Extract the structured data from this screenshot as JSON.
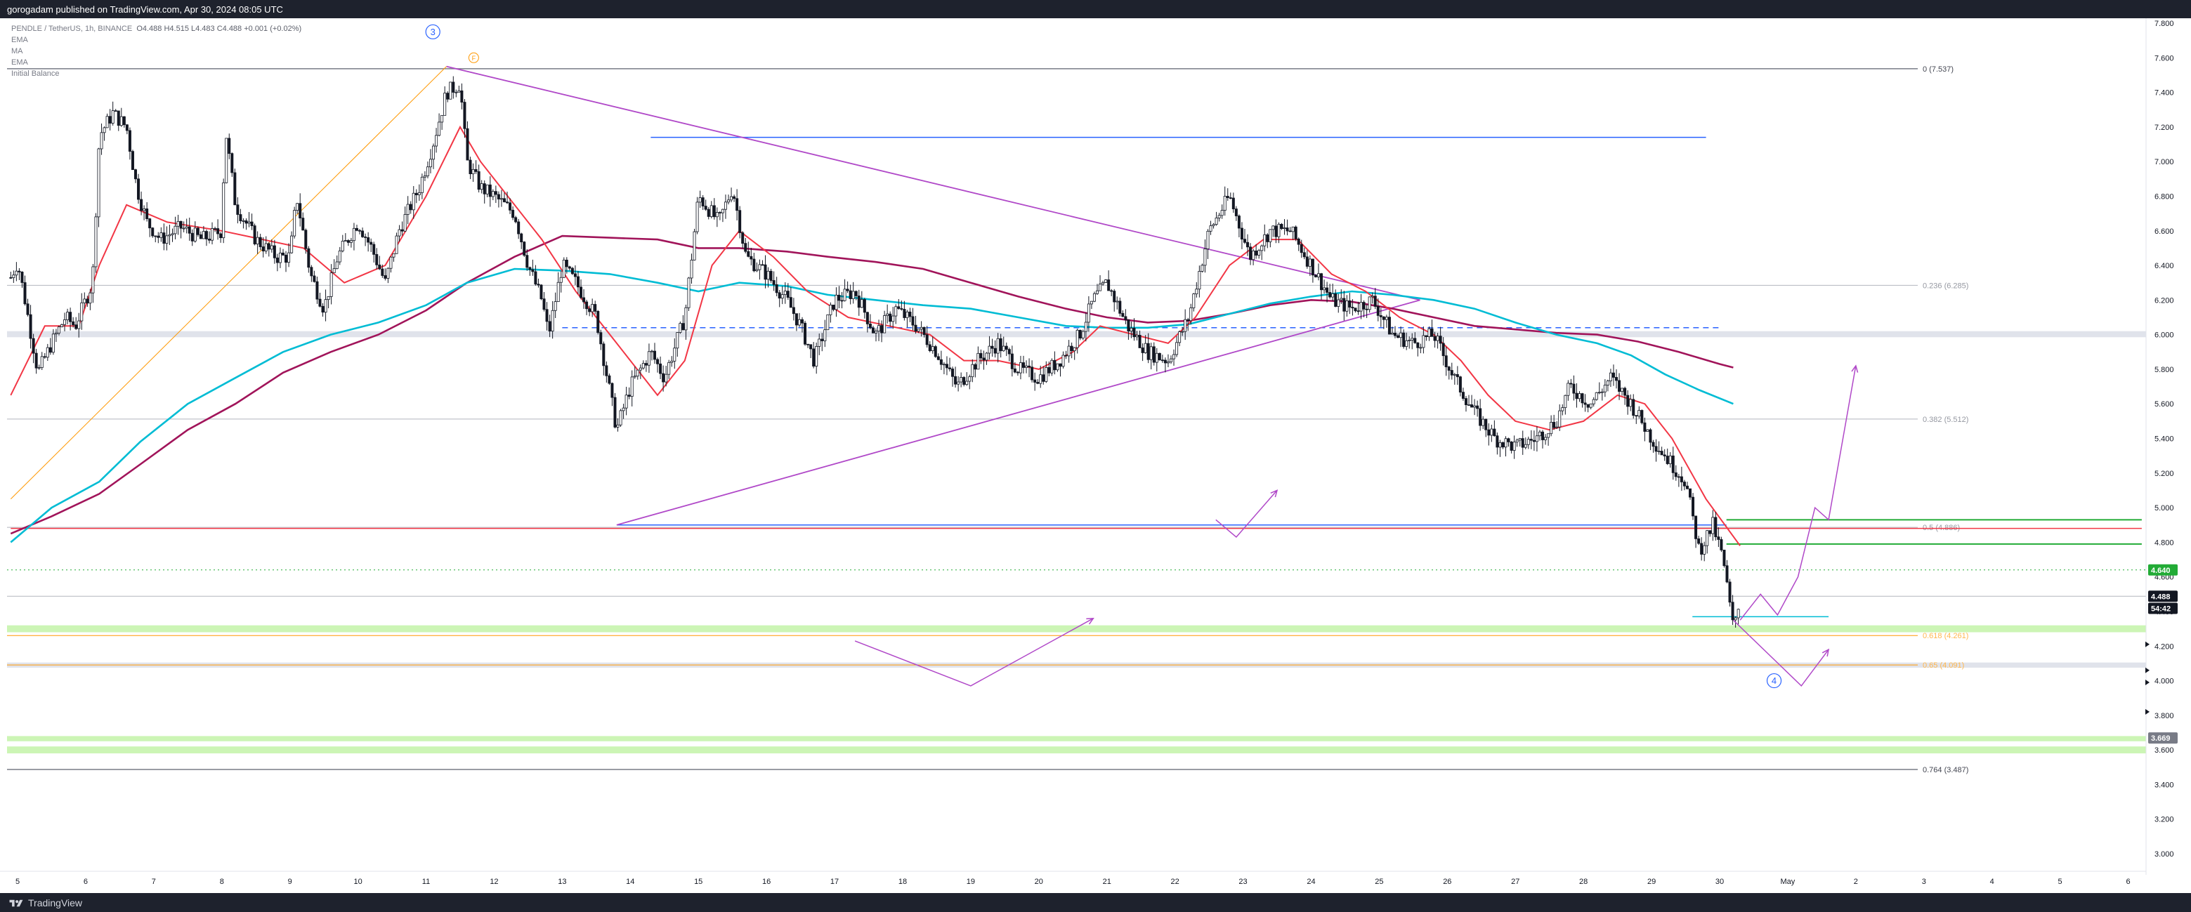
{
  "header": {
    "publisher_line": "gorogadam published on TradingView.com, Apr 30, 2024 08:05 UTC"
  },
  "legend": {
    "symbol": "PENDLE / TetherUS, 1h, BINANCE",
    "ohlc": "O4.488  H4.515  L4.483  C4.488  +0.001 (+0.02%)",
    "indicators": [
      "EMA",
      "MA",
      "EMA",
      "Initial Balance"
    ]
  },
  "footer": {
    "brand": "TradingView"
  },
  "colors": {
    "candle": "#131722",
    "ema_fast": "#f23645",
    "ma": "#00bcd4",
    "ema_slow": "#a1145a",
    "trend_line": "#b048c8",
    "fib_line": "#9598a1",
    "blue_level": "#2962ff",
    "green_level": "#22ab36",
    "zone": "#ccf5b5"
  },
  "chart_data": {
    "type": "candlestick",
    "symbol": "PENDLE / TetherUS",
    "interval": "1h",
    "exchange": "BINANCE",
    "x_ticks": [
      "5",
      "6",
      "7",
      "8",
      "9",
      "10",
      "11",
      "12",
      "13",
      "14",
      "15",
      "16",
      "17",
      "18",
      "19",
      "20",
      "21",
      "22",
      "23",
      "24",
      "25",
      "26",
      "27",
      "28",
      "29",
      "30",
      "May",
      "2",
      "3",
      "4",
      "5",
      "6"
    ],
    "x_tick_days": [
      5,
      6,
      7,
      8,
      9,
      10,
      11,
      12,
      13,
      14,
      15,
      16,
      17,
      18,
      19,
      20,
      21,
      22,
      23,
      24,
      25,
      26,
      27,
      28,
      29,
      30,
      31,
      32,
      33,
      34,
      35,
      36
    ],
    "y_ticks": [
      "7.800",
      "7.600",
      "7.400",
      "7.200",
      "7.000",
      "6.800",
      "6.600",
      "6.400",
      "6.200",
      "6.000",
      "5.800",
      "5.600",
      "5.400",
      "5.200",
      "5.000",
      "4.800",
      "4.600",
      "4.400",
      "4.200",
      "4.000",
      "3.800",
      "3.600",
      "3.400",
      "3.200",
      "3.000"
    ],
    "ylim": [
      2.96,
      7.86
    ],
    "price_points": [
      [
        4.9,
        6.33
      ],
      [
        5.0,
        6.42
      ],
      [
        5.1,
        6.22
      ],
      [
        5.2,
        6.0
      ],
      [
        5.3,
        5.78
      ],
      [
        5.5,
        5.95
      ],
      [
        5.7,
        6.1
      ],
      [
        5.85,
        6.05
      ],
      [
        6.1,
        6.3
      ],
      [
        6.2,
        7.15
      ],
      [
        6.4,
        7.28
      ],
      [
        6.6,
        7.2
      ],
      [
        6.75,
        6.85
      ],
      [
        6.9,
        6.65
      ],
      [
        7.1,
        6.55
      ],
      [
        7.4,
        6.62
      ],
      [
        7.7,
        6.55
      ],
      [
        8.0,
        6.6
      ],
      [
        8.05,
        7.2
      ],
      [
        8.2,
        6.75
      ],
      [
        8.5,
        6.55
      ],
      [
        8.8,
        6.45
      ],
      [
        9.0,
        6.45
      ],
      [
        9.1,
        6.8
      ],
      [
        9.3,
        6.35
      ],
      [
        9.5,
        6.15
      ],
      [
        9.7,
        6.45
      ],
      [
        10.0,
        6.65
      ],
      [
        10.2,
        6.5
      ],
      [
        10.4,
        6.3
      ],
      [
        10.6,
        6.6
      ],
      [
        10.9,
        6.85
      ],
      [
        11.1,
        7.1
      ],
      [
        11.3,
        7.4
      ],
      [
        11.5,
        7.45
      ],
      [
        11.6,
        7.0
      ],
      [
        11.8,
        6.85
      ],
      [
        12.0,
        6.8
      ],
      [
        12.3,
        6.7
      ],
      [
        12.5,
        6.4
      ],
      [
        12.7,
        6.2
      ],
      [
        12.8,
        6.0
      ],
      [
        13.0,
        6.4
      ],
      [
        13.2,
        6.3
      ],
      [
        13.5,
        6.1
      ],
      [
        13.8,
        5.45
      ],
      [
        14.0,
        5.7
      ],
      [
        14.3,
        5.9
      ],
      [
        14.5,
        5.75
      ],
      [
        14.8,
        6.1
      ],
      [
        15.0,
        6.8
      ],
      [
        15.3,
        6.65
      ],
      [
        15.5,
        6.85
      ],
      [
        15.7,
        6.45
      ],
      [
        16.0,
        6.35
      ],
      [
        16.3,
        6.2
      ],
      [
        16.5,
        6.05
      ],
      [
        16.7,
        5.85
      ],
      [
        17.0,
        6.2
      ],
      [
        17.3,
        6.25
      ],
      [
        17.6,
        6.0
      ],
      [
        17.9,
        6.15
      ],
      [
        18.2,
        6.05
      ],
      [
        18.5,
        5.9
      ],
      [
        18.8,
        5.7
      ],
      [
        19.1,
        5.85
      ],
      [
        19.4,
        5.95
      ],
      [
        19.7,
        5.8
      ],
      [
        20.0,
        5.75
      ],
      [
        20.3,
        5.85
      ],
      [
        20.6,
        6.0
      ],
      [
        20.8,
        6.2
      ],
      [
        21.0,
        6.3
      ],
      [
        21.3,
        6.05
      ],
      [
        21.6,
        5.9
      ],
      [
        21.9,
        5.85
      ],
      [
        22.2,
        6.1
      ],
      [
        22.5,
        6.6
      ],
      [
        22.8,
        6.8
      ],
      [
        23.1,
        6.45
      ],
      [
        23.4,
        6.6
      ],
      [
        23.7,
        6.6
      ],
      [
        24.0,
        6.4
      ],
      [
        24.3,
        6.2
      ],
      [
        24.6,
        6.15
      ],
      [
        24.9,
        6.2
      ],
      [
        25.2,
        6.0
      ],
      [
        25.5,
        5.95
      ],
      [
        25.8,
        6.0
      ],
      [
        26.1,
        5.75
      ],
      [
        26.4,
        5.55
      ],
      [
        26.7,
        5.4
      ],
      [
        27.0,
        5.35
      ],
      [
        27.3,
        5.4
      ],
      [
        27.6,
        5.5
      ],
      [
        27.8,
        5.7
      ],
      [
        28.1,
        5.6
      ],
      [
        28.4,
        5.75
      ],
      [
        28.7,
        5.6
      ],
      [
        29.0,
        5.4
      ],
      [
        29.3,
        5.25
      ],
      [
        29.5,
        5.15
      ],
      [
        29.7,
        4.75
      ],
      [
        29.9,
        4.9
      ],
      [
        30.05,
        4.7
      ],
      [
        30.2,
        4.3
      ],
      [
        30.3,
        4.488
      ]
    ],
    "ema_fast": [
      [
        4.9,
        5.65
      ],
      [
        5.4,
        6.05
      ],
      [
        5.9,
        6.05
      ],
      [
        6.2,
        6.4
      ],
      [
        6.6,
        6.75
      ],
      [
        7.2,
        6.65
      ],
      [
        8.0,
        6.6
      ],
      [
        8.6,
        6.55
      ],
      [
        9.2,
        6.5
      ],
      [
        9.8,
        6.3
      ],
      [
        10.4,
        6.4
      ],
      [
        11.0,
        6.8
      ],
      [
        11.5,
        7.2
      ],
      [
        11.8,
        7.0
      ],
      [
        12.2,
        6.8
      ],
      [
        12.7,
        6.55
      ],
      [
        13.2,
        6.25
      ],
      [
        13.8,
        5.95
      ],
      [
        14.4,
        5.65
      ],
      [
        14.8,
        5.85
      ],
      [
        15.2,
        6.4
      ],
      [
        15.6,
        6.6
      ],
      [
        16.1,
        6.45
      ],
      [
        16.6,
        6.25
      ],
      [
        17.2,
        6.1
      ],
      [
        17.8,
        6.05
      ],
      [
        18.4,
        6.0
      ],
      [
        18.9,
        5.85
      ],
      [
        19.4,
        5.85
      ],
      [
        20.0,
        5.8
      ],
      [
        20.5,
        5.9
      ],
      [
        20.9,
        6.05
      ],
      [
        21.4,
        6.0
      ],
      [
        21.9,
        5.95
      ],
      [
        22.3,
        6.1
      ],
      [
        22.8,
        6.4
      ],
      [
        23.3,
        6.55
      ],
      [
        23.8,
        6.55
      ],
      [
        24.3,
        6.35
      ],
      [
        24.8,
        6.25
      ],
      [
        25.3,
        6.1
      ],
      [
        25.8,
        6.0
      ],
      [
        26.2,
        5.85
      ],
      [
        26.6,
        5.65
      ],
      [
        27.0,
        5.5
      ],
      [
        27.5,
        5.45
      ],
      [
        28.0,
        5.5
      ],
      [
        28.5,
        5.65
      ],
      [
        28.9,
        5.6
      ],
      [
        29.3,
        5.4
      ],
      [
        29.8,
        5.05
      ],
      [
        30.3,
        4.78
      ]
    ],
    "ma": [
      [
        4.9,
        4.8
      ],
      [
        5.5,
        5.0
      ],
      [
        6.2,
        5.15
      ],
      [
        6.8,
        5.38
      ],
      [
        7.5,
        5.6
      ],
      [
        8.2,
        5.75
      ],
      [
        8.9,
        5.9
      ],
      [
        9.6,
        6.0
      ],
      [
        10.3,
        6.07
      ],
      [
        11.0,
        6.17
      ],
      [
        11.6,
        6.3
      ],
      [
        12.3,
        6.38
      ],
      [
        13.0,
        6.37
      ],
      [
        13.7,
        6.35
      ],
      [
        14.4,
        6.3
      ],
      [
        15.0,
        6.25
      ],
      [
        15.6,
        6.3
      ],
      [
        16.3,
        6.28
      ],
      [
        16.9,
        6.23
      ],
      [
        17.6,
        6.2
      ],
      [
        18.3,
        6.17
      ],
      [
        19.0,
        6.15
      ],
      [
        19.7,
        6.1
      ],
      [
        20.4,
        6.05
      ],
      [
        21.0,
        6.04
      ],
      [
        21.6,
        6.04
      ],
      [
        22.2,
        6.06
      ],
      [
        22.8,
        6.12
      ],
      [
        23.4,
        6.18
      ],
      [
        24.0,
        6.22
      ],
      [
        24.6,
        6.25
      ],
      [
        25.2,
        6.23
      ],
      [
        25.8,
        6.2
      ],
      [
        26.4,
        6.15
      ],
      [
        27.0,
        6.07
      ],
      [
        27.6,
        6.0
      ],
      [
        28.2,
        5.95
      ],
      [
        28.7,
        5.88
      ],
      [
        29.2,
        5.77
      ],
      [
        29.7,
        5.68
      ],
      [
        30.2,
        5.6
      ]
    ],
    "ema_slow": [
      [
        4.9,
        4.85
      ],
      [
        5.5,
        4.95
      ],
      [
        6.2,
        5.08
      ],
      [
        6.8,
        5.25
      ],
      [
        7.5,
        5.45
      ],
      [
        8.2,
        5.6
      ],
      [
        8.9,
        5.78
      ],
      [
        9.6,
        5.9
      ],
      [
        10.3,
        6.0
      ],
      [
        11.0,
        6.14
      ],
      [
        11.6,
        6.3
      ],
      [
        12.3,
        6.45
      ],
      [
        13.0,
        6.57
      ],
      [
        13.7,
        6.56
      ],
      [
        14.4,
        6.55
      ],
      [
        15.0,
        6.5
      ],
      [
        15.6,
        6.5
      ],
      [
        16.3,
        6.48
      ],
      [
        16.9,
        6.45
      ],
      [
        17.6,
        6.42
      ],
      [
        18.3,
        6.38
      ],
      [
        19.0,
        6.3
      ],
      [
        19.7,
        6.22
      ],
      [
        20.4,
        6.15
      ],
      [
        21.0,
        6.1
      ],
      [
        21.6,
        6.07
      ],
      [
        22.2,
        6.08
      ],
      [
        22.8,
        6.12
      ],
      [
        23.4,
        6.17
      ],
      [
        24.0,
        6.2
      ],
      [
        24.6,
        6.19
      ],
      [
        25.2,
        6.15
      ],
      [
        25.8,
        6.1
      ],
      [
        26.4,
        6.05
      ],
      [
        27.0,
        6.03
      ],
      [
        27.6,
        6.01
      ],
      [
        28.2,
        6.0
      ],
      [
        28.8,
        5.96
      ],
      [
        29.4,
        5.9
      ],
      [
        30.0,
        5.83
      ],
      [
        30.2,
        5.81
      ]
    ],
    "fib_levels": [
      {
        "label": "0 (7.537)",
        "value": 7.537
      },
      {
        "label": "0.236 (6.285)",
        "value": 6.285
      },
      {
        "label": "0.382 (5.512)",
        "value": 5.512
      },
      {
        "label": "0.5 (4.886)",
        "value": 4.886
      },
      {
        "label": "0.618 (4.261)",
        "value": 4.261
      },
      {
        "label": "0.65 (4.091)",
        "value": 4.091
      },
      {
        "label": "0.764 (3.487)",
        "value": 3.487
      }
    ],
    "horizontal_levels": [
      {
        "name": "resistance-top",
        "value": 7.14,
        "from": 14.3,
        "to": 29.8,
        "color": "#2962ff",
        "style": "solid"
      },
      {
        "name": "dashed-mid",
        "value": 6.04,
        "from": 13.0,
        "to": 30.0,
        "color": "#2962ff",
        "style": "dashed"
      },
      {
        "name": "support-4.9",
        "value": 4.9,
        "from": 13.8,
        "to": 30.1,
        "color": "#2962ff",
        "style": "solid"
      },
      {
        "name": "red-4.88",
        "value": 4.88,
        "from": 4.9,
        "to": 36.2,
        "color": "#f23645",
        "style": "solid"
      },
      {
        "name": "green-4.93",
        "value": 4.93,
        "from": 30.1,
        "to": 36.2,
        "color": "#22ab36",
        "style": "solid"
      },
      {
        "name": "green-4.79",
        "value": 4.79,
        "from": 30.1,
        "to": 36.2,
        "color": "#22ab36",
        "style": "solid"
      },
      {
        "name": "cyan-4.37",
        "value": 4.37,
        "from": 29.6,
        "to": 31.6,
        "color": "#00bcd4",
        "style": "solid"
      }
    ],
    "zones": [
      {
        "name": "grey-6.0",
        "from": 5.985,
        "to": 6.02,
        "color": "#e0e3eb"
      },
      {
        "name": "green-4.3",
        "from": 4.28,
        "to": 4.32,
        "color": "#ccf5b5"
      },
      {
        "name": "grey-4.09",
        "from": 4.075,
        "to": 4.105,
        "color": "#e0e3eb"
      },
      {
        "name": "green-3.66",
        "from": 3.65,
        "to": 3.68,
        "color": "#ccf5b5"
      },
      {
        "name": "green-3.6",
        "from": 3.58,
        "to": 3.62,
        "color": "#ccf5b5"
      }
    ],
    "trend_lines": [
      {
        "name": "descending-wedge-top",
        "from": [
          11.3,
          7.55
        ],
        "to": [
          25.6,
          6.2
        ]
      },
      {
        "name": "ascending-wedge-bottom",
        "from": [
          13.8,
          4.9
        ],
        "to": [
          25.6,
          6.2
        ]
      },
      {
        "name": "orange-impulse",
        "from": [
          4.9,
          5.05
        ],
        "to": [
          11.3,
          7.55
        ],
        "color": "#ff9800"
      }
    ],
    "projection_paths": [
      [
        [
          30.3,
          4.35
        ],
        [
          30.6,
          4.5
        ],
        [
          30.85,
          4.38
        ],
        [
          31.15,
          4.6
        ],
        [
          31.4,
          5.0
        ],
        [
          31.6,
          4.93
        ],
        [
          32.0,
          5.82
        ]
      ],
      [
        [
          30.2,
          4.35
        ],
        [
          31.2,
          3.97
        ],
        [
          31.6,
          4.18
        ]
      ],
      [
        [
          17.3,
          4.23
        ],
        [
          19.0,
          3.97
        ],
        [
          20.8,
          4.36
        ]
      ],
      [
        [
          22.6,
          4.93
        ],
        [
          22.9,
          4.83
        ],
        [
          23.5,
          5.1
        ]
      ]
    ],
    "wave_labels": [
      {
        "text": "3",
        "x": 11.1,
        "y": 7.75
      },
      {
        "text": "4",
        "x": 30.8,
        "y": 4.0
      }
    ],
    "marker_labels": [
      {
        "text": "F",
        "x": 11.7,
        "y": 7.6
      }
    ],
    "price_tags": [
      {
        "text": "4.640",
        "value": 4.64,
        "bg": "#22ab36",
        "fg": "#ffffff"
      },
      {
        "text": "4.488",
        "value": 4.488,
        "bg": "#131722",
        "fg": "#ffffff"
      },
      {
        "text": "54:42",
        "value": 4.418,
        "bg": "#131722",
        "fg": "#ffffff"
      },
      {
        "text": "3.669",
        "value": 3.669,
        "bg": "#787b86",
        "fg": "#ffffff"
      }
    ],
    "dotted_level": {
      "value": 4.64,
      "color": "#22ab36"
    }
  }
}
